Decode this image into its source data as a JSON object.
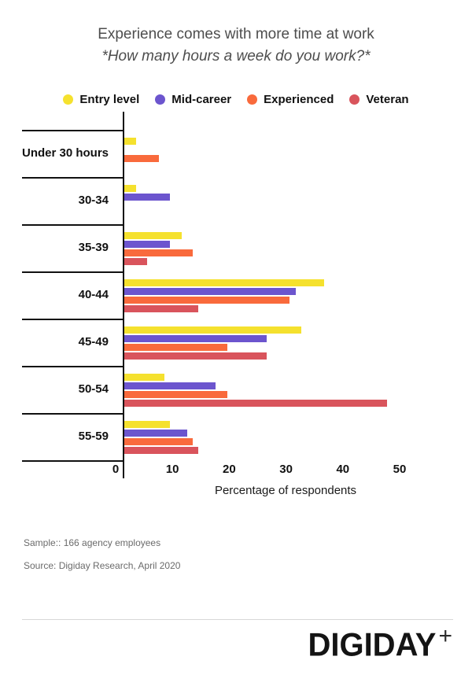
{
  "title": "Experience comes with more time at work",
  "subtitle": "*How many hours a week do you work?*",
  "chart_data": {
    "type": "bar",
    "orientation": "horizontal",
    "title": "Experience comes with more time at work",
    "subtitle": "*How many hours a week do you work?*",
    "categories": [
      "Under 30 hours",
      "30-34",
      "35-39",
      "40-44",
      "45-49",
      "50-54",
      "55-59"
    ],
    "series": [
      {
        "name": "Entry level",
        "color": "#F5E12E",
        "values": [
          2,
          2,
          10,
          35,
          31,
          7,
          8
        ]
      },
      {
        "name": "Mid-career",
        "color": "#6C55CE",
        "values": [
          0,
          8,
          8,
          30,
          25,
          16,
          11
        ]
      },
      {
        "name": "Experienced",
        "color": "#F96A3C",
        "values": [
          6,
          0,
          12,
          29,
          18,
          18,
          12
        ]
      },
      {
        "name": "Veteran",
        "color": "#D9545C",
        "values": [
          0,
          0,
          4,
          13,
          25,
          46,
          13
        ]
      }
    ],
    "xlabel": "Percentage of respondents",
    "ylabel": "",
    "x_ticks": [
      0,
      10,
      20,
      30,
      40,
      50
    ],
    "xlim": [
      0,
      57
    ],
    "grid": false,
    "legend_position": "top"
  },
  "footnotes": {
    "sample": "Sample:: 166 agency employees",
    "source": "Source: Digiday Research, April 2020"
  },
  "logo": {
    "text": "DIGIDAY",
    "plus": "+"
  }
}
